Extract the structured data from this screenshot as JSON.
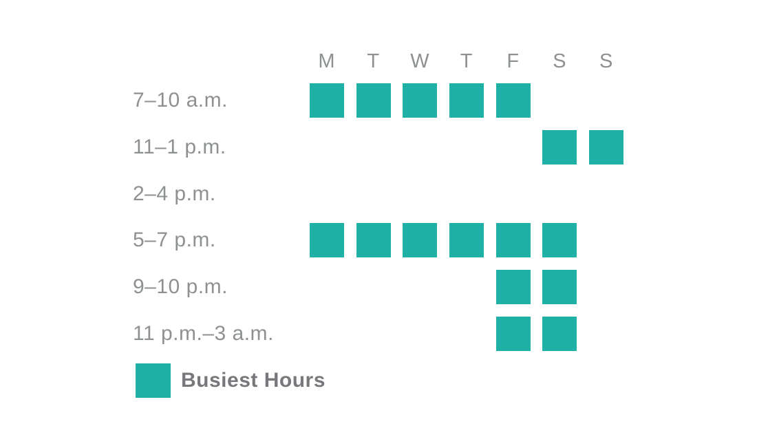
{
  "chart_data": {
    "type": "heatmap",
    "title": "",
    "columns": [
      "M",
      "T",
      "W",
      "T",
      "F",
      "S",
      "S"
    ],
    "rows": [
      {
        "label": "7–10 a.m.",
        "busy": [
          1,
          1,
          1,
          1,
          1,
          0,
          0
        ]
      },
      {
        "label": "11–1 p.m.",
        "busy": [
          0,
          0,
          0,
          0,
          0,
          1,
          1
        ]
      },
      {
        "label": "2–4 p.m.",
        "busy": [
          0,
          0,
          0,
          0,
          0,
          0,
          0
        ]
      },
      {
        "label": "5–7 p.m.",
        "busy": [
          1,
          1,
          1,
          1,
          1,
          1,
          0
        ]
      },
      {
        "label": "9–10 p.m.",
        "busy": [
          0,
          0,
          0,
          0,
          1,
          1,
          0
        ]
      },
      {
        "label": "11 p.m.–3 a.m.",
        "busy": [
          0,
          0,
          0,
          0,
          1,
          1,
          0
        ]
      }
    ],
    "legend": {
      "label": "Busiest Hours"
    },
    "colors": {
      "busy": "#1fb1a6",
      "label_gray": "#8e9192",
      "legend_text": "#77787b",
      "background": "#ffffff"
    }
  }
}
